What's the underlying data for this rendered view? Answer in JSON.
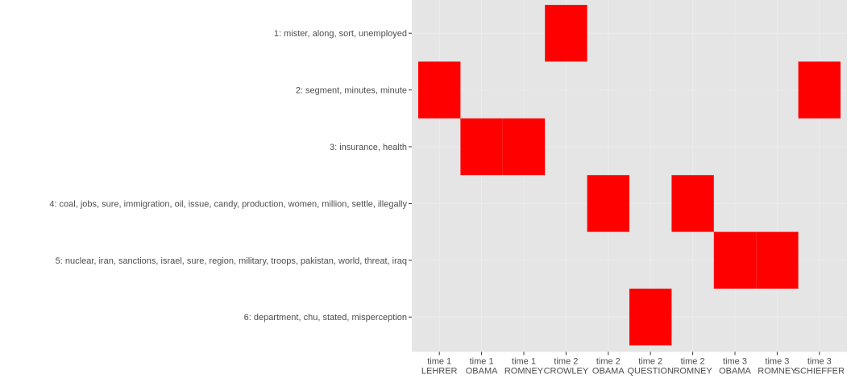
{
  "chart_data": {
    "type": "heatmap",
    "title": "",
    "xlabel": "",
    "ylabel": "",
    "legend": "none",
    "grid": true,
    "panel_color": "#e5e5e5",
    "grid_color": "#ebebeb",
    "fill_color": "#ff0000",
    "text_color": "#4d4d4d",
    "x_categories": [
      {
        "line1": "time 1",
        "line2": "LEHRER"
      },
      {
        "line1": "time 1",
        "line2": "OBAMA"
      },
      {
        "line1": "time 1",
        "line2": "ROMNEY"
      },
      {
        "line1": "time 2",
        "line2": "CROWLEY"
      },
      {
        "line1": "time 2",
        "line2": "OBAMA"
      },
      {
        "line1": "time 2",
        "line2": "QUESTION"
      },
      {
        "line1": "time 2",
        "line2": "ROMNEY"
      },
      {
        "line1": "time 3",
        "line2": "OBAMA"
      },
      {
        "line1": "time 3",
        "line2": "ROMNEY"
      },
      {
        "line1": "time 3",
        "line2": "SCHIEFFER"
      }
    ],
    "y_categories": [
      "1: mister, along, sort, unemployed",
      "2: segment, minutes, minute",
      "3: insurance, health",
      "4: coal, jobs, sure, immigration, oil, issue, candy, production, women, million, settle, illegally",
      "5: nuclear, iran, sanctions, israel, sure, region, military, troops, pakistan, world, threat, iraq",
      "6: department, chu, stated, misperception"
    ],
    "cells": [
      {
        "x": 3,
        "y": 0
      },
      {
        "x": 0,
        "y": 1
      },
      {
        "x": 9,
        "y": 1
      },
      {
        "x": 1,
        "y": 2
      },
      {
        "x": 2,
        "y": 2
      },
      {
        "x": 4,
        "y": 3
      },
      {
        "x": 6,
        "y": 3
      },
      {
        "x": 7,
        "y": 4
      },
      {
        "x": 8,
        "y": 4
      },
      {
        "x": 5,
        "y": 5
      }
    ]
  }
}
